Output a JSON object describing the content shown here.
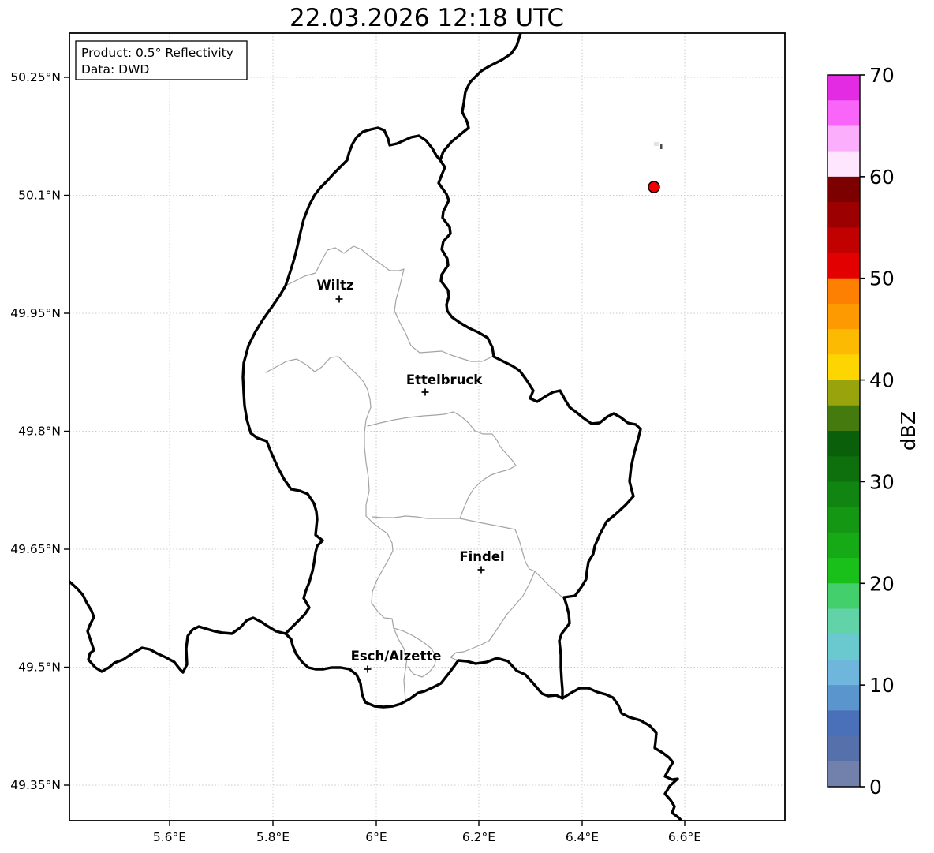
{
  "title": "22.03.2026 12:18 UTC",
  "info_box": {
    "product_line": "Product: 0.5° Reflectivity",
    "data_line": "Data: DWD"
  },
  "axes": {
    "lat_ticks": [
      "50.25°N",
      "50.1°N",
      "49.95°N",
      "49.8°N",
      "49.65°N",
      "49.5°N",
      "49.35°N"
    ],
    "lon_ticks": [
      "5.6°E",
      "5.8°E",
      "6°E",
      "6.2°E",
      "6.4°E",
      "6.6°E"
    ]
  },
  "cities": [
    {
      "name": "Wiltz"
    },
    {
      "name": "Ettelbruck"
    },
    {
      "name": "Findel"
    },
    {
      "name": "Esch/Alzette"
    }
  ],
  "radar_echo": {
    "fill": "#ee0000",
    "stroke": "#000000"
  },
  "colorbar": {
    "label": "dBZ",
    "min": 0,
    "max": 70,
    "segment_step": 2.5,
    "tick_values": [
      70,
      60,
      50,
      40,
      30,
      20,
      10,
      0
    ],
    "segment_colors_top_to_bottom": [
      "#e22be2",
      "#f964f9",
      "#fbaefb",
      "#fee7fe",
      "#7c0000",
      "#9c0000",
      "#c10000",
      "#e30000",
      "#fd8002",
      "#fd9a01",
      "#fcba02",
      "#fdd602",
      "#99a40c",
      "#457a0e",
      "#0a600a",
      "#0d700d",
      "#118511",
      "#149814",
      "#17aa17",
      "#1ac01a",
      "#44cf6d",
      "#62d3a8",
      "#6ac9cf",
      "#6eb6dc",
      "#5b95cd",
      "#4a70b9",
      "#5570ab",
      "#7280ac"
    ]
  }
}
